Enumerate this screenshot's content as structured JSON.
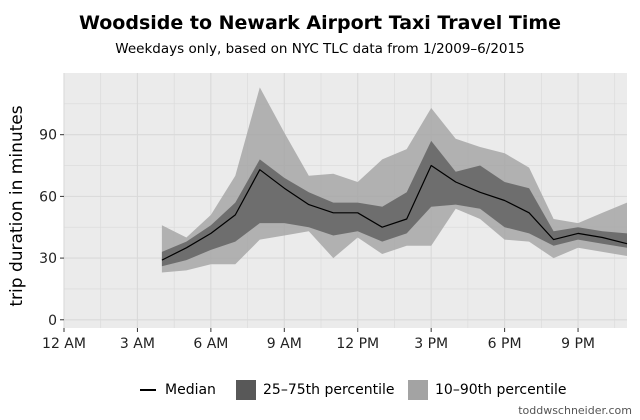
{
  "title": "Woodside to Newark Airport Taxi Travel Time",
  "subtitle": "Weekdays only, based on NYC TLC data from 1/2009–6/2015",
  "credit": "toddwschneider.com",
  "legend": {
    "median": "Median",
    "iqr": "25–75th percentile",
    "p1090": "10–90th percentile"
  },
  "colors": {
    "panel": "#ebebeb",
    "gridline": "#d9d9d9",
    "median": "#000000",
    "iqr_band": "#585858",
    "p1090_band": "#a3a3a3"
  },
  "chart_data": {
    "type": "area",
    "title": "Woodside to Newark Airport Taxi Travel Time",
    "subtitle": "Weekdays only, based on NYC TLC data from 1/2009–6/2015",
    "xlabel": "",
    "ylabel": "trip duration in minutes",
    "xlim": [
      0,
      23
    ],
    "ylim": [
      -4,
      120
    ],
    "x_ticks": [
      0,
      3,
      6,
      9,
      12,
      15,
      18,
      21
    ],
    "x_tick_labels": [
      "12 AM",
      "3 AM",
      "6 AM",
      "9 AM",
      "12 PM",
      "3 PM",
      "6 PM",
      "9 PM"
    ],
    "y_ticks": [
      0,
      30,
      60,
      90
    ],
    "y_tick_labels": [
      "0",
      "30",
      "60",
      "90"
    ],
    "grid": true,
    "legend_position": "bottom",
    "x": [
      4,
      5,
      6,
      7,
      8,
      9,
      10,
      11,
      12,
      13,
      14,
      15,
      16,
      17,
      18,
      19,
      20,
      21,
      22,
      23
    ],
    "series": [
      {
        "name": "10–90th percentile",
        "kind": "band",
        "lower": [
          23,
          24,
          27,
          27,
          39,
          41,
          43,
          30,
          40,
          32,
          36,
          36,
          54,
          49,
          39,
          38,
          30,
          35,
          33,
          31
        ],
        "upper": [
          46,
          40,
          51,
          70,
          113,
          91,
          70,
          71,
          67,
          78,
          83,
          103,
          88,
          84,
          81,
          74,
          49,
          47,
          52,
          57
        ]
      },
      {
        "name": "25–75th percentile",
        "kind": "band",
        "lower": [
          26,
          29,
          34,
          38,
          47,
          47,
          45,
          41,
          43,
          38,
          42,
          55,
          56,
          54,
          45,
          42,
          36,
          39,
          37,
          35
        ],
        "upper": [
          33,
          38,
          46,
          57,
          78,
          69,
          62,
          57,
          57,
          55,
          62,
          87,
          72,
          75,
          67,
          64,
          43,
          45,
          43,
          42
        ]
      },
      {
        "name": "Median",
        "kind": "line",
        "values": [
          29,
          35,
          42,
          51,
          73,
          64,
          56,
          52,
          52,
          45,
          49,
          75,
          67,
          62,
          58,
          52,
          39,
          42,
          40,
          37
        ]
      }
    ]
  }
}
